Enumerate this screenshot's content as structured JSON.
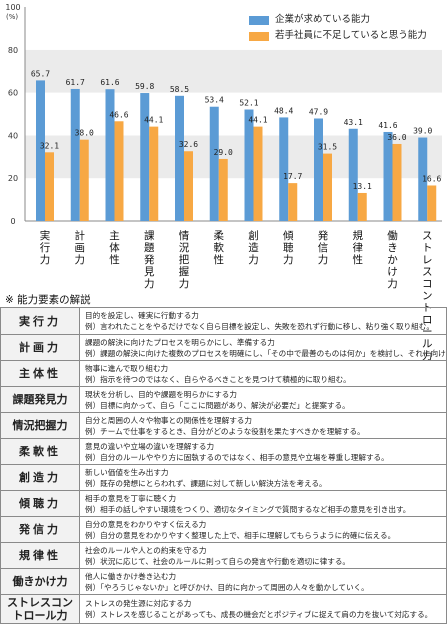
{
  "chart_data": {
    "type": "bar",
    "ylim": [
      0,
      100
    ],
    "yticks": [
      0,
      20,
      40,
      60,
      80,
      100
    ],
    "yunit": "(%)",
    "grid": true,
    "legend_position": "top-right",
    "categories": [
      "実行力",
      "計画力",
      "主体性",
      "課題発見力",
      "情況把握力",
      "柔軟性",
      "創造力",
      "傾聴力",
      "発信力",
      "規律性",
      "働きかけ力",
      "ストレスコントロール力"
    ],
    "category_display": [
      "実\n行\n力",
      "計\n画\n力",
      "主\n体\n性",
      "課\n題\n発\n見\n力",
      "情\n況\n把\n握\n力",
      "柔\n軟\n性",
      "創\n造\n力",
      "傾\n聴\n力",
      "発\n信\n力",
      "規\n律\n性",
      "働\nき\nか\nけ\n力",
      "ス\nト\nレ\nス\nコ\nン\nト\nロ\nー\nル\n力"
    ],
    "series": [
      {
        "name": "企業が求めている能力",
        "color": "#5b9bd5",
        "values": [
          65.7,
          61.7,
          61.6,
          59.8,
          58.5,
          53.4,
          52.1,
          48.4,
          47.9,
          43.1,
          41.6,
          39.0
        ]
      },
      {
        "name": "若手社員に不足していると思う能力",
        "color": "#f7a844",
        "values": [
          32.1,
          38.0,
          46.6,
          44.1,
          32.6,
          29.0,
          44.1,
          17.7,
          31.5,
          13.1,
          36.0,
          16.6
        ]
      }
    ],
    "value_labels": [
      [
        "65.7",
        "61.7",
        "61.6",
        "59.8",
        "58.5",
        "53.4",
        "52.1",
        "48.4",
        "47.9",
        "43.1",
        "41.6",
        "39.0"
      ],
      [
        "32.1",
        "38.0",
        "46.6",
        "44.1",
        "32.6",
        "29.0",
        "44.1",
        "17.7",
        "31.5",
        "13.1",
        "36.0",
        "16.6"
      ]
    ]
  },
  "section_title": "※ 能力要素の解説",
  "definitions": [
    {
      "term": "実行力",
      "lines": [
        "目的を設定し、確実に行動する力",
        "例）言われたことをやるだけでなく自ら目標を設定し、失敗を恐れず行動に移し、粘り強く取り組む。"
      ]
    },
    {
      "term": "計画力",
      "lines": [
        "課題の解決に向けたプロセスを明らかにし、準備する力",
        "例）課題の解決に向けた複数のプロセスを明確にし、「その中で最善のものは何か」を検討し、それに向けた準備をする。"
      ]
    },
    {
      "term": "主体性",
      "lines": [
        "物事に進んで取り組む力",
        "例）指示を待つのではなく、自らやるべきことを見つけて積極的に取り組む。"
      ]
    },
    {
      "term": "課題発見力",
      "lines": [
        "現状を分析し、目的や課題を明らかにする力",
        "例）目標に向かって、自ら「ここに問題があり、解決が必要だ」と提案する。"
      ]
    },
    {
      "term": "情況把握力",
      "lines": [
        "自分と周囲の人々や物事との関係性を理解する力",
        "例）チームで仕事をするとき、自分がどのような役割を果たすべきかを理解する。"
      ]
    },
    {
      "term": "柔軟性",
      "lines": [
        "意見の違いや立場の違いを理解する力",
        "例）自分のルールややり方に固執するのではなく、相手の意見や立場を尊重し理解する。"
      ]
    },
    {
      "term": "創造力",
      "lines": [
        "新しい価値を生み出す力",
        "例）既存の発想にとらわれず、課題に対して新しい解決方法を考える。"
      ]
    },
    {
      "term": "傾聴力",
      "lines": [
        "相手の意見を丁寧に聴く力",
        "例）相手の話しやすい環境をつくり、適切なタイミングで質問するなど相手の意見を引き出す。"
      ]
    },
    {
      "term": "発信力",
      "lines": [
        "自分の意見をわかりやすく伝える力",
        "例）自分の意見をわかりやすく整理した上で、相手に理解してもらうように的確に伝える。"
      ]
    },
    {
      "term": "規律性",
      "lines": [
        "社会のルールや人との約束を守る力",
        "例）状況に応じて、社会のルールに則って自らの発言や行動を適切に律する。"
      ]
    },
    {
      "term": "働きかけ力",
      "lines": [
        "他人に働きかけ巻き込む力",
        "例）「やろうじゃないか」と呼びかけ、目的に向かって周囲の人々を動かしていく。"
      ]
    },
    {
      "term": "ストレスコン\nトロール力",
      "lines": [
        "ストレスの発生源に対応する力",
        "例）ストレスを感じることがあっても、成長の機会だとポジティブに捉えて肩の力を抜いて対応する。"
      ]
    }
  ]
}
